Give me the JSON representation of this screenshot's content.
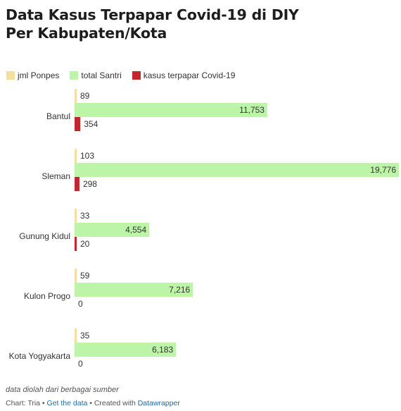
{
  "title_line1": "Data Kasus Terpapar Covid-19 di DIY",
  "title_line2": "Per Kabupaten/Kota",
  "legend": [
    {
      "label": "jml Ponpes",
      "color": "#f5dfa0"
    },
    {
      "label": "total Santri",
      "color": "#bdf5a8"
    },
    {
      "label": "kasus terpapar Covid-19",
      "color": "#c1272d"
    }
  ],
  "chart_data": {
    "type": "bar",
    "orientation": "horizontal",
    "categories": [
      "Bantul",
      "Sleman",
      "Gunung Kidul",
      "Kulon Progo",
      "Kota Yogyakarta"
    ],
    "series": [
      {
        "name": "jml Ponpes",
        "values": [
          89,
          103,
          33,
          59,
          35
        ],
        "labels": [
          "89",
          "103",
          "33",
          "59",
          "35"
        ],
        "color": "#f5dfa0"
      },
      {
        "name": "total Santri",
        "values": [
          11753,
          19776,
          4554,
          7216,
          6183
        ],
        "labels": [
          "11,753",
          "19,776",
          "4,554",
          "7,216",
          "6,183"
        ],
        "color": "#bdf5a8"
      },
      {
        "name": "kasus terpapar Covid-19",
        "values": [
          354,
          298,
          20,
          0,
          0
        ],
        "labels": [
          "354",
          "298",
          "20",
          "0",
          "0"
        ],
        "color": "#c1272d"
      }
    ],
    "xlim": [
      0,
      19776
    ],
    "grid": false,
    "legend_position": "top-left"
  },
  "notes": "data diolah dari berbagai sumber",
  "byline": {
    "prefix": "Chart: Tria • ",
    "get_data": "Get the data",
    "middle": " • Created with ",
    "tool": "Datawrapper"
  }
}
